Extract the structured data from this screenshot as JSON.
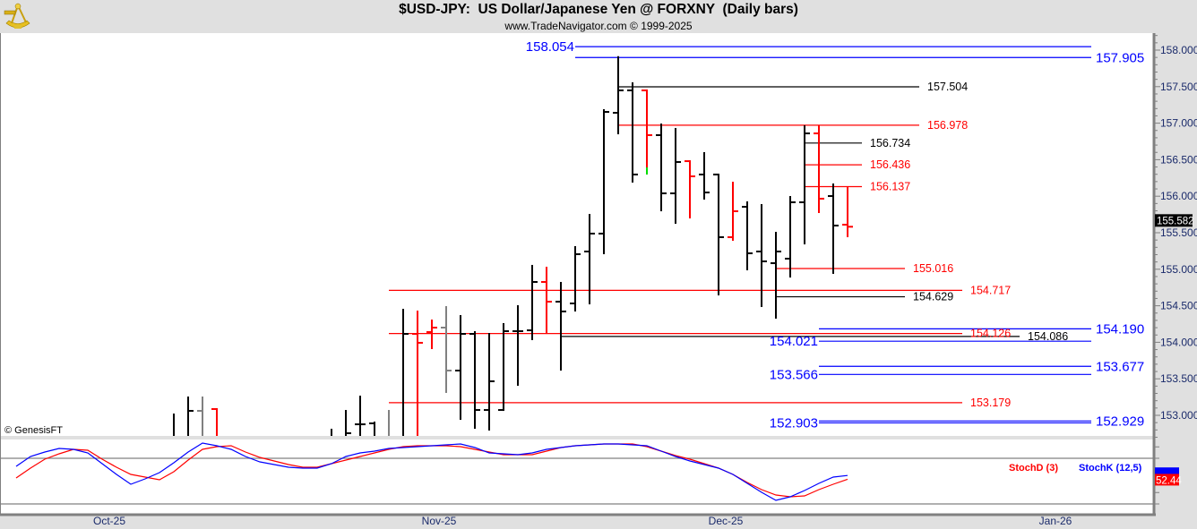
{
  "header": {
    "title": "$USD-JPY:  US Dollar/Japanese Yen @ FORXNY  (Daily bars)",
    "subtitle": "www.TradeNavigator.com © 1999-2025",
    "logo_icon": "sextant-icon",
    "copyright": "© GenesisFT"
  },
  "colors": {
    "k": "#000000",
    "r": "#ff0000",
    "g": "#808080",
    "blue": "#0000ff",
    "green": "#00dd00",
    "axis_text": "#1a2a6a"
  },
  "chart_data": [
    {
      "type": "ohlc",
      "title": "$USD-JPY:  US Dollar/Japanese Yen @ FORXNY  (Daily bars)",
      "ylim": [
        152.72,
        158.23
      ],
      "y_ticks": [
        "158.000",
        "157.500",
        "157.000",
        "156.500",
        "156.000",
        "155.500",
        "155.000",
        "154.500",
        "154.000",
        "153.500",
        "153.000"
      ],
      "x_ticks": [
        {
          "date": "2025-10-01",
          "label": "Oct-25"
        },
        {
          "date": "2025-11-03",
          "label": "Nov-25"
        },
        {
          "date": "2025-12-01",
          "label": "Dec-25"
        },
        {
          "date": "2026-01-01",
          "label": "Jan-26"
        }
      ],
      "last_price": "155.582",
      "bars": [
        {
          "d": "2025-10-08",
          "o": 152.7,
          "h": 153.012,
          "l": 152.6,
          "c": 152.7,
          "col": "k"
        },
        {
          "d": "2025-10-09",
          "o": 152.7,
          "h": 153.245,
          "l": 152.6,
          "c": 153.061,
          "col": "k"
        },
        {
          "d": "2025-10-10",
          "o": 153.061,
          "h": 153.245,
          "l": 152.6,
          "c": 152.7,
          "col": "g"
        },
        {
          "d": "2025-10-13",
          "o": 153.086,
          "h": 153.086,
          "l": 152.6,
          "c": 152.7,
          "col": "r"
        },
        {
          "d": "2025-10-23",
          "o": 152.7,
          "h": 152.804,
          "l": 152.6,
          "c": 152.7,
          "col": "k"
        },
        {
          "d": "2025-10-24",
          "o": 152.7,
          "h": 153.061,
          "l": 152.6,
          "c": 152.755,
          "col": "k"
        },
        {
          "d": "2025-10-27",
          "o": 152.877,
          "h": 153.257,
          "l": 152.6,
          "c": 152.877,
          "col": "k"
        },
        {
          "d": "2025-10-28",
          "o": 152.89,
          "h": 152.902,
          "l": 152.6,
          "c": 152.7,
          "col": "k"
        },
        {
          "d": "2025-10-29",
          "o": 152.7,
          "h": 153.061,
          "l": 152.6,
          "c": 152.7,
          "col": "g"
        },
        {
          "d": "2025-10-30",
          "o": 152.7,
          "h": 154.446,
          "l": 152.6,
          "c": 154.115,
          "col": "k"
        },
        {
          "d": "2025-10-31",
          "o": 154.115,
          "h": 154.422,
          "l": 152.6,
          "c": 153.993,
          "col": "r"
        },
        {
          "d": "2025-11-03",
          "o": 154.14,
          "h": 154.299,
          "l": 153.919,
          "c": 154.201,
          "col": "r"
        },
        {
          "d": "2025-11-04",
          "o": 154.201,
          "h": 154.483,
          "l": 153.319,
          "c": 153.613,
          "col": "g"
        },
        {
          "d": "2025-11-05",
          "o": 153.613,
          "h": 154.36,
          "l": 152.951,
          "c": 154.115,
          "col": "k"
        },
        {
          "d": "2025-11-06",
          "o": 154.115,
          "h": 154.14,
          "l": 152.828,
          "c": 153.073,
          "col": "k"
        },
        {
          "d": "2025-11-07",
          "o": 153.073,
          "h": 154.115,
          "l": 152.804,
          "c": 153.466,
          "col": "k"
        },
        {
          "d": "2025-11-10",
          "o": 153.073,
          "h": 154.25,
          "l": 153.073,
          "c": 154.152,
          "col": "k"
        },
        {
          "d": "2025-11-11",
          "o": 154.152,
          "h": 154.495,
          "l": 153.417,
          "c": 154.152,
          "col": "k"
        },
        {
          "d": "2025-11-12",
          "o": 154.164,
          "h": 155.047,
          "l": 154.042,
          "c": 154.826,
          "col": "k"
        },
        {
          "d": "2025-11-13",
          "o": 154.826,
          "h": 155.022,
          "l": 154.127,
          "c": 154.556,
          "col": "r"
        },
        {
          "d": "2025-11-14",
          "o": 154.556,
          "h": 154.814,
          "l": 153.625,
          "c": 154.422,
          "col": "k"
        },
        {
          "d": "2025-11-17",
          "o": 154.532,
          "h": 155.304,
          "l": 154.434,
          "c": 155.206,
          "col": "k"
        },
        {
          "d": "2025-11-18",
          "o": 155.243,
          "h": 155.745,
          "l": 154.532,
          "c": 155.488,
          "col": "k"
        },
        {
          "d": "2025-11-19",
          "o": 155.488,
          "h": 157.179,
          "l": 155.218,
          "c": 157.154,
          "col": "k"
        },
        {
          "d": "2025-11-20",
          "o": 157.142,
          "h": 157.905,
          "l": 156.86,
          "c": 157.449,
          "col": "k"
        },
        {
          "d": "2025-11-21",
          "o": 157.449,
          "h": 157.547,
          "l": 156.199,
          "c": 156.297,
          "col": "k"
        },
        {
          "d": "2025-11-24",
          "o": 157.449,
          "h": 157.449,
          "l": 156.309,
          "c": 156.836,
          "col": "r",
          "low_mark": "green"
        },
        {
          "d": "2025-11-25",
          "o": 156.836,
          "h": 156.983,
          "l": 155.806,
          "c": 156.039,
          "col": "k"
        },
        {
          "d": "2025-11-26",
          "o": 156.039,
          "h": 156.922,
          "l": 155.635,
          "c": 156.468,
          "col": "k"
        },
        {
          "d": "2025-11-27",
          "o": 156.48,
          "h": 156.48,
          "l": 155.708,
          "c": 156.272,
          "col": "r"
        },
        {
          "d": "2025-11-28",
          "o": 156.297,
          "h": 156.591,
          "l": 155.966,
          "c": 156.051,
          "col": "k"
        },
        {
          "d": "2025-12-01",
          "o": 156.297,
          "h": 156.297,
          "l": 154.654,
          "c": 155.439,
          "col": "k"
        },
        {
          "d": "2025-12-02",
          "o": 155.439,
          "h": 156.186,
          "l": 155.402,
          "c": 155.794,
          "col": "r"
        },
        {
          "d": "2025-12-03",
          "o": 155.855,
          "h": 155.917,
          "l": 154.998,
          "c": 155.218,
          "col": "k"
        },
        {
          "d": "2025-12-04",
          "o": 155.243,
          "h": 155.88,
          "l": 154.495,
          "c": 155.108,
          "col": "k"
        },
        {
          "d": "2025-12-05",
          "o": 155.083,
          "h": 155.5,
          "l": 154.336,
          "c": 155.243,
          "col": "k"
        },
        {
          "d": "2025-12-08",
          "o": 155.145,
          "h": 155.99,
          "l": 154.899,
          "c": 155.917,
          "col": "k"
        },
        {
          "d": "2025-12-09",
          "o": 155.917,
          "h": 156.958,
          "l": 155.353,
          "c": 156.86,
          "col": "k"
        },
        {
          "d": "2025-12-10",
          "o": 156.86,
          "h": 156.958,
          "l": 155.782,
          "c": 155.966,
          "col": "r"
        },
        {
          "d": "2025-12-11",
          "o": 156.002,
          "h": 156.162,
          "l": 154.949,
          "c": 155.598,
          "col": "k"
        },
        {
          "d": "2025-12-12",
          "o": 155.61,
          "h": 156.125,
          "l": 155.451,
          "c": 155.582,
          "col": "r"
        }
      ],
      "levels": [
        {
          "label": "158.054",
          "price": 158.054,
          "color": "blue",
          "from": "2025-11-17",
          "to": "2026-01-06",
          "side": "left",
          "size": "lg"
        },
        {
          "label": "157.905",
          "price": 157.905,
          "color": "blue",
          "from": "2025-11-17",
          "to": "2026-01-06",
          "side": "right",
          "size": "lg"
        },
        {
          "label": "157.504",
          "price": 157.504,
          "color": "k",
          "from": "2025-11-20",
          "to": "2025-12-19",
          "side": "right",
          "size": "sm"
        },
        {
          "label": "156.978",
          "price": 156.978,
          "color": "r",
          "from": "2025-11-20",
          "to": "2025-12-19",
          "side": "right",
          "size": "sm"
        },
        {
          "label": "156.734",
          "price": 156.734,
          "color": "k",
          "from": "2025-12-09",
          "to": "2025-12-15",
          "side": "right",
          "size": "sm"
        },
        {
          "label": "156.436",
          "price": 156.436,
          "color": "r",
          "from": "2025-12-09",
          "to": "2025-12-15",
          "side": "right",
          "size": "sm"
        },
        {
          "label": "156.137",
          "price": 156.137,
          "color": "r",
          "from": "2025-12-09",
          "to": "2025-12-15",
          "side": "right",
          "size": "sm"
        },
        {
          "label": "155.016",
          "price": 155.016,
          "color": "r",
          "from": "2025-12-05",
          "to": "2025-12-18",
          "side": "right",
          "size": "sm"
        },
        {
          "label": "154.717",
          "price": 154.717,
          "color": "r",
          "from": "2025-10-29",
          "to": "2025-12-24",
          "side": "right",
          "size": "sm"
        },
        {
          "label": "154.629",
          "price": 154.629,
          "color": "k",
          "from": "2025-12-05",
          "to": "2025-12-18",
          "side": "right",
          "size": "sm"
        },
        {
          "label": "154.190",
          "price": 154.19,
          "color": "blue",
          "from": "2025-12-10",
          "to": "2026-01-06",
          "side": "right",
          "size": "lg"
        },
        {
          "label": "154.126",
          "price": 154.126,
          "color": "r",
          "from": "2025-10-29",
          "to": "2025-12-24",
          "side": "right",
          "size": "sm"
        },
        {
          "label": "154.086",
          "price": 154.086,
          "color": "k",
          "from": "2025-11-14",
          "to": "2025-12-30",
          "side": "right",
          "size": "sm"
        },
        {
          "label": "154.021",
          "price": 154.021,
          "color": "blue",
          "from": "2025-12-10",
          "to": "2026-01-06",
          "side": "left",
          "size": "lg"
        },
        {
          "label": "153.677",
          "price": 153.677,
          "color": "blue",
          "from": "2025-12-10",
          "to": "2026-01-06",
          "side": "right",
          "size": "lg"
        },
        {
          "label": "153.566",
          "price": 153.566,
          "color": "blue",
          "from": "2025-12-10",
          "to": "2026-01-06",
          "side": "left",
          "size": "lg"
        },
        {
          "label": "153.179",
          "price": 153.179,
          "color": "r",
          "from": "2025-10-29",
          "to": "2025-12-24",
          "side": "right",
          "size": "sm"
        },
        {
          "label": "152.929",
          "price": 152.929,
          "color": "blue",
          "from": "2025-12-10",
          "to": "2026-01-06",
          "side": "right",
          "size": "lg"
        },
        {
          "label": "152.903",
          "price": 152.903,
          "color": "blue",
          "from": "2025-12-10",
          "to": "2026-01-06",
          "side": "left",
          "size": "lg"
        }
      ]
    },
    {
      "type": "line",
      "ylim": [
        9,
        106
      ],
      "reference_lines": [
        80,
        20
      ],
      "start_date": "2025-09-23",
      "series": [
        {
          "name": "StochD (3)",
          "color": "r",
          "last_label": "52.44",
          "values": [
            54.1,
            67.1,
            78.8,
            85.9,
            91.8,
            90.6,
            78.8,
            68.2,
            58.8,
            55.3,
            51.8,
            62.4,
            77.6,
            91.8,
            95.3,
            96.5,
            88.2,
            81.2,
            76.5,
            71.8,
            68.2,
            68.2,
            72.9,
            77.6,
            82.4,
            87.1,
            91.8,
            95.3,
            96.5,
            96.5,
            96.5,
            95.3,
            91.8,
            88.2,
            84.7,
            84.7,
            84.7,
            89.4,
            94.1,
            96.5,
            97.6,
            98.8,
            98.8,
            98.8,
            95.3,
            89.4,
            83.5,
            78.8,
            72.9,
            67.1,
            58.8,
            48.2,
            38.8,
            31.8,
            29.4,
            30.6,
            38.8,
            45.9,
            52.44
          ]
        },
        {
          "name": "StochK (12,5)",
          "color": "blue",
          "values": [
            69.4,
            82.4,
            88.2,
            92.9,
            91.8,
            87.1,
            72.9,
            58.8,
            45.9,
            52.9,
            61.2,
            74.1,
            88.2,
            100,
            96.5,
            91.8,
            82.4,
            75.3,
            71.8,
            68.2,
            67.1,
            67.1,
            72.9,
            82.4,
            87.1,
            89.4,
            92.9,
            94.1,
            95.3,
            96.5,
            97.6,
            98.8,
            94.1,
            87.1,
            85.9,
            84.7,
            87.1,
            91.8,
            94.1,
            96.5,
            97.6,
            98.8,
            98.8,
            97.6,
            96.5,
            89.4,
            82.4,
            76.5,
            71.8,
            67.1,
            58.8,
            47.1,
            35.3,
            24.7,
            29.4,
            37.6,
            47.1,
            55.3,
            57.4
          ]
        }
      ]
    }
  ]
}
